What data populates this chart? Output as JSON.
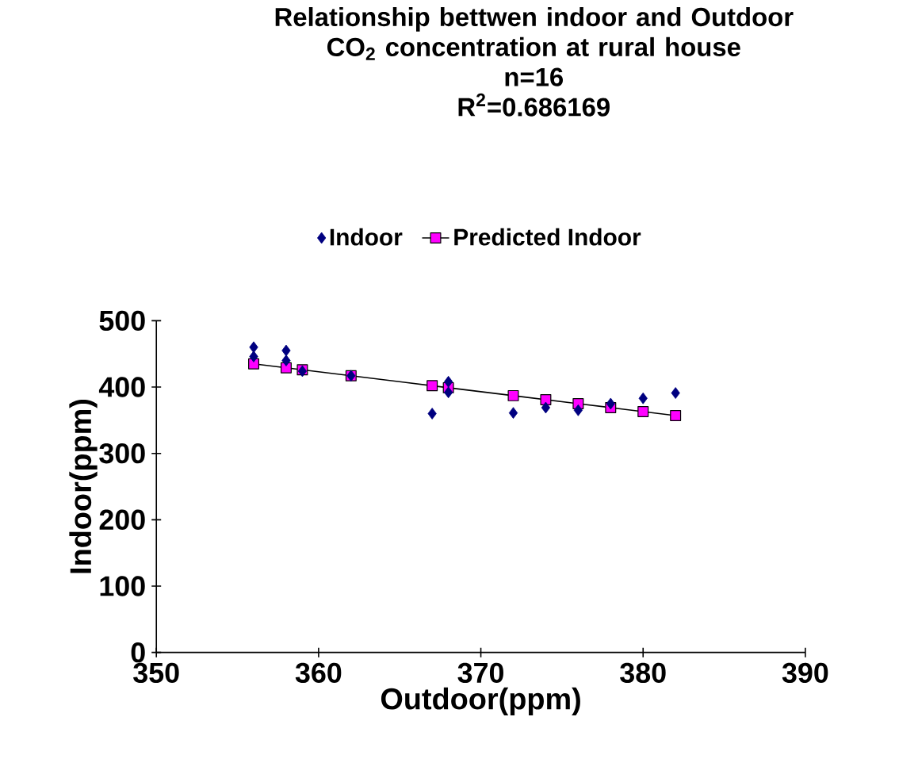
{
  "chart_data": {
    "type": "scatter",
    "title": "Relationship bettwen indoor and Outdoor CO$_{2}$ concentration at rural house",
    "subtitle": "n=16",
    "annotations": [
      "R$^{2}$=0.686169"
    ],
    "xlabel": "Outdoor(ppm)",
    "ylabel": "Indoor(ppm)",
    "xlim": [
      350,
      390
    ],
    "xticks": [
      350,
      360,
      370,
      380,
      390
    ],
    "ylim": [
      0,
      500
    ],
    "yticks": [
      0,
      100,
      200,
      300,
      400,
      500
    ],
    "grid": false,
    "legend": "top",
    "series": [
      {
        "name": "Indoor",
        "marker": "diamond",
        "color": "#000080",
        "x": [
          356,
          356,
          358,
          358,
          359,
          362,
          367,
          368,
          368,
          372,
          374,
          376,
          378,
          380,
          382
        ],
        "values": [
          460,
          446,
          455,
          440,
          424,
          417,
          360,
          408,
          392,
          361,
          369,
          365,
          375,
          383,
          391
        ]
      },
      {
        "name": "Predicted Indoor",
        "type": "line",
        "marker": "square",
        "color": "#ff00ff",
        "x": [
          356,
          358,
          359,
          362,
          367,
          368,
          372,
          374,
          376,
          378,
          380,
          382
        ],
        "values": [
          435,
          429,
          426,
          417,
          402,
          399,
          387,
          381,
          375,
          369,
          363,
          357
        ]
      }
    ]
  }
}
